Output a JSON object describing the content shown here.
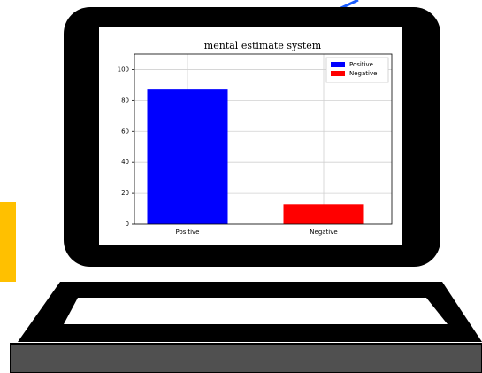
{
  "chart_data": {
    "type": "bar",
    "title": "mental estimate system",
    "categories": [
      "Positive",
      "Negative"
    ],
    "values": [
      87,
      13
    ],
    "colors": [
      "#0000ff",
      "#ff0000"
    ],
    "ylim": [
      0,
      110
    ],
    "yticks": [
      0,
      20,
      40,
      60,
      80,
      100
    ],
    "grid": true,
    "legend": true,
    "legend_position": "upper right"
  }
}
